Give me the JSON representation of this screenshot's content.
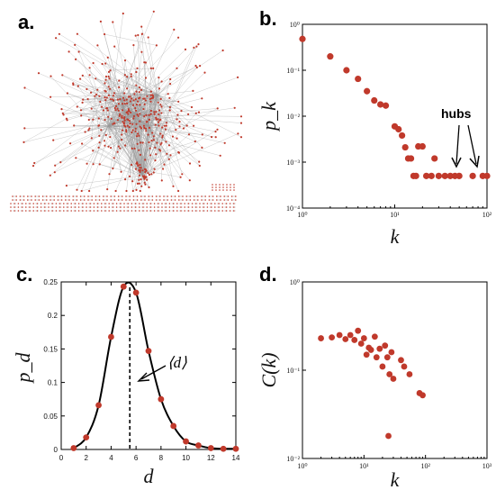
{
  "panels": {
    "a": {
      "label": "a."
    },
    "b": {
      "label": "b."
    },
    "c": {
      "label": "c."
    },
    "d": {
      "label": "d."
    }
  },
  "colors": {
    "marker": "#c0392b",
    "line": "#000000",
    "edge": "#9a9a9a"
  },
  "chart_data": [
    {
      "id": "a",
      "type": "other",
      "description_type": "network-graph",
      "title": ""
    },
    {
      "id": "b",
      "type": "scatter",
      "xscale": "log",
      "yscale": "log",
      "xlim": [
        1,
        100
      ],
      "ylim": [
        0.0001,
        1
      ],
      "xticks": [
        1,
        10,
        100
      ],
      "xtick_labels": [
        "10⁰",
        "10¹",
        "10²"
      ],
      "yticks": [
        1,
        0.1,
        0.01,
        0.001,
        0.0001
      ],
      "ytick_labels": [
        "10⁰",
        "10⁻¹",
        "10⁻²",
        "10⁻³",
        "10⁻⁴"
      ],
      "xlabel": "k",
      "ylabel": "p_k",
      "annotation": "hubs",
      "points": [
        [
          1,
          0.48
        ],
        [
          2,
          0.2
        ],
        [
          3,
          0.1
        ],
        [
          4,
          0.065
        ],
        [
          5,
          0.035
        ],
        [
          6,
          0.022
        ],
        [
          7,
          0.018
        ],
        [
          8,
          0.017
        ],
        [
          10,
          0.006
        ],
        [
          11,
          0.0052
        ],
        [
          12,
          0.0038
        ],
        [
          13,
          0.0021
        ],
        [
          14,
          0.0012
        ],
        [
          15,
          0.0012
        ],
        [
          16,
          0.0005
        ],
        [
          17,
          0.0005
        ],
        [
          18,
          0.0022
        ],
        [
          20,
          0.0022
        ],
        [
          22,
          0.0005
        ],
        [
          25,
          0.0005
        ],
        [
          27,
          0.0012
        ],
        [
          30,
          0.0005
        ],
        [
          35,
          0.0005
        ],
        [
          40,
          0.0005
        ],
        [
          45,
          0.0005
        ],
        [
          50,
          0.0005
        ],
        [
          70,
          0.0005
        ],
        [
          90,
          0.0005
        ],
        [
          100,
          0.0005
        ]
      ]
    },
    {
      "id": "c",
      "type": "line",
      "xlim": [
        0,
        14
      ],
      "ylim": [
        0,
        0.25
      ],
      "xticks": [
        0,
        2,
        4,
        6,
        8,
        10,
        12,
        14
      ],
      "xtick_labels": [
        "0",
        "2",
        "4",
        "6",
        "8",
        "10",
        "12",
        "14"
      ],
      "yticks": [
        0,
        0.05,
        0.1,
        0.15,
        0.2,
        0.25
      ],
      "ytick_labels": [
        "0",
        "0.05",
        "0.1",
        "0.15",
        "0.2",
        "0.25"
      ],
      "xlabel": "d",
      "ylabel": "p_d",
      "annotation": "⟨d⟩",
      "mean_line_x": 5.5,
      "x": [
        1,
        2,
        3,
        4,
        5,
        6,
        7,
        8,
        9,
        10,
        11,
        12,
        13,
        14
      ],
      "y": [
        0.002,
        0.018,
        0.066,
        0.168,
        0.243,
        0.234,
        0.147,
        0.075,
        0.035,
        0.012,
        0.006,
        0.002,
        0.001,
        0.001
      ]
    },
    {
      "id": "d",
      "type": "scatter",
      "xscale": "log",
      "yscale": "log",
      "xlim": [
        1,
        1000
      ],
      "ylim": [
        0.01,
        1
      ],
      "xticks": [
        1,
        10,
        100,
        1000
      ],
      "xtick_labels": [
        "10⁰",
        "10¹",
        "10²",
        "10³"
      ],
      "yticks": [
        1,
        0.1,
        0.01
      ],
      "ytick_labels": [
        "10⁰",
        "10⁻¹",
        "10⁻²"
      ],
      "xlabel": "k",
      "ylabel": "C(k)",
      "points": [
        [
          2,
          0.23
        ],
        [
          3,
          0.235
        ],
        [
          4,
          0.25
        ],
        [
          5,
          0.225
        ],
        [
          6,
          0.25
        ],
        [
          7,
          0.22
        ],
        [
          8,
          0.28
        ],
        [
          9,
          0.2
        ],
        [
          10,
          0.23
        ],
        [
          11,
          0.15
        ],
        [
          12,
          0.18
        ],
        [
          13,
          0.17
        ],
        [
          15,
          0.24
        ],
        [
          16,
          0.14
        ],
        [
          18,
          0.175
        ],
        [
          20,
          0.11
        ],
        [
          22,
          0.19
        ],
        [
          24,
          0.14
        ],
        [
          25,
          0.018
        ],
        [
          26,
          0.09
        ],
        [
          28,
          0.16
        ],
        [
          30,
          0.08
        ],
        [
          40,
          0.13
        ],
        [
          45,
          0.11
        ],
        [
          55,
          0.09
        ],
        [
          80,
          0.055
        ],
        [
          90,
          0.052
        ]
      ]
    }
  ]
}
